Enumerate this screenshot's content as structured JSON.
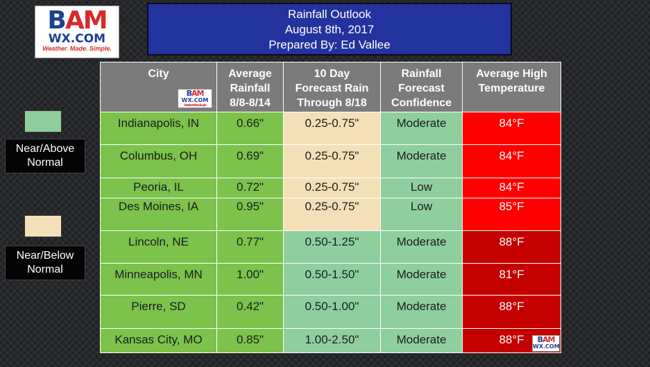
{
  "logo": {
    "part1": "B",
    "part2": "A",
    "part3": "M",
    "sub": "WX.COM",
    "tagline": "Weather. Made. Simple."
  },
  "title": {
    "line1": "Rainfall Outlook",
    "line2": "August 8th, 2017",
    "line3": "Prepared By: Ed Vallee"
  },
  "legend": [
    {
      "label_line1": "Near/Above",
      "label_line2": "Normal",
      "color": "#8ecf9d"
    },
    {
      "label_line1": "Near/Below",
      "label_line2": "Normal",
      "color": "#f5dfb8"
    }
  ],
  "table": {
    "headers": {
      "city": "City",
      "avg_rain": [
        "Average",
        "Rainfall",
        "8/8-8/14"
      ],
      "forecast": [
        "10 Day",
        "Forecast Rain",
        "Through 8/18"
      ],
      "confidence": [
        "Rainfall",
        "Forecast",
        "Confidence"
      ],
      "temp": [
        "Average High",
        "Temperature"
      ]
    },
    "rows": [
      {
        "city": "Indianapolis, IN",
        "avg": "0.66\"",
        "forecast": "0.25-0.75\"",
        "confidence": "Moderate",
        "temp": "84°F"
      },
      {
        "city": "Columbus, OH",
        "avg": "0.69\"",
        "forecast": "0.25-0.75\"",
        "confidence": "Moderate",
        "temp": "84°F"
      },
      {
        "city": "Peoria, IL",
        "avg": "0.72\"",
        "forecast": "0.25-0.75\"",
        "confidence": "Low",
        "temp": "84°F"
      },
      {
        "city": "Des Moines, IA",
        "avg": "0.95\"",
        "forecast": "0.25-0.75\"",
        "confidence": "Low",
        "temp": "85°F"
      },
      {
        "city": "Lincoln, NE",
        "avg": "0.77\"",
        "forecast": "0.50-1.25\"",
        "confidence": "Moderate",
        "temp": "88°F"
      },
      {
        "city": "Minneapolis, MN",
        "avg": "1.00\"",
        "forecast": "0.50-1.50\"",
        "confidence": "Moderate",
        "temp": "81°F"
      },
      {
        "city": "Pierre, SD",
        "avg": "0.42\"",
        "forecast": "0.50-1.00\"",
        "confidence": "Moderate",
        "temp": "88°F"
      },
      {
        "city": "Kansas City, MO",
        "avg": "0.85\"",
        "forecast": "1.00-2.50\"",
        "confidence": "Moderate",
        "temp": "88°F"
      }
    ]
  },
  "colors": {
    "above_normal": "#8ecf9d",
    "below_normal": "#f5dfb8",
    "avg_rain": "#7cc24b",
    "hot": "#ff0000",
    "hotter": "#c40000",
    "header": "#7b7b7b",
    "title_bg": "#22339e"
  }
}
